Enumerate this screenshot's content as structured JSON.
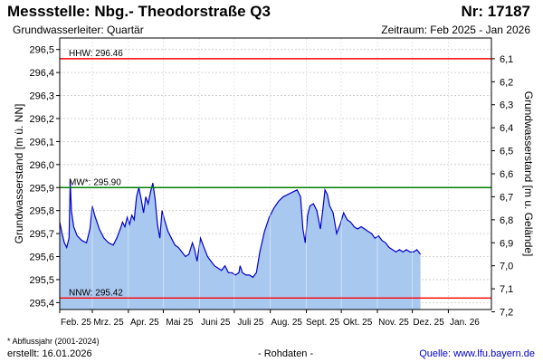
{
  "header": {
    "title": "Messstelle: Nbg.- Theodorstraße Q3",
    "number": "Nr: 17187",
    "aquifer": "Grundwasserleiter: Quartär",
    "period": "Zeitraum: Feb 2025 - Jan 2026"
  },
  "footer": {
    "footnote": "* Abflussjahr (2001-2024)",
    "created": "erstellt:  16.01.2026",
    "raw_data": "- Rohdaten -",
    "source": "Quelle:  www.lfu.bayern.de"
  },
  "chart_data": {
    "type": "area",
    "ylabel": "Grundwasserstand [m ü. NN]",
    "ylabel_right": "Grundwasserstand [m u. Gelände]",
    "ylim": [
      295.37,
      296.55
    ],
    "yticks": [
      {
        "value": 295.4,
        "label": "295,4"
      },
      {
        "value": 295.5,
        "label": "295,5"
      },
      {
        "value": 295.6,
        "label": "295,6"
      },
      {
        "value": 295.7,
        "label": "295,7"
      },
      {
        "value": 295.8,
        "label": "295,8"
      },
      {
        "value": 295.9,
        "label": "295,9"
      },
      {
        "value": 296.0,
        "label": "296,0"
      },
      {
        "value": 296.1,
        "label": "296,1"
      },
      {
        "value": 296.2,
        "label": "296,2"
      },
      {
        "value": 296.3,
        "label": "296,3"
      },
      {
        "value": 296.4,
        "label": "296,4"
      },
      {
        "value": 296.5,
        "label": "296,5"
      }
    ],
    "yticks_right": [
      {
        "value": 296.46,
        "label": "6,1"
      },
      {
        "value": 296.36,
        "label": "6,2"
      },
      {
        "value": 296.26,
        "label": "6,3"
      },
      {
        "value": 296.16,
        "label": "6,4"
      },
      {
        "value": 296.06,
        "label": "6,5"
      },
      {
        "value": 295.96,
        "label": "6,6"
      },
      {
        "value": 295.86,
        "label": "6,7"
      },
      {
        "value": 295.76,
        "label": "6,8"
      },
      {
        "value": 295.66,
        "label": "6,9"
      },
      {
        "value": 295.56,
        "label": "7,0"
      },
      {
        "value": 295.46,
        "label": "7,1"
      },
      {
        "value": 295.36,
        "label": "7,2"
      }
    ],
    "xlim": [
      "2025-02-01",
      "2026-02-07"
    ],
    "xticks": [
      {
        "value": "2025-02-15",
        "label": "Feb. 25"
      },
      {
        "value": "2025-03-15",
        "label": "Mrz. 25"
      },
      {
        "value": "2025-04-15",
        "label": "Apr. 25"
      },
      {
        "value": "2025-05-15",
        "label": "Mai 25"
      },
      {
        "value": "2025-06-15",
        "label": "Juni 25"
      },
      {
        "value": "2025-07-15",
        "label": "Juli 25"
      },
      {
        "value": "2025-08-15",
        "label": "Aug. 25"
      },
      {
        "value": "2025-09-15",
        "label": "Sept. 25"
      },
      {
        "value": "2025-10-15",
        "label": "Okt. 25"
      },
      {
        "value": "2025-11-15",
        "label": "Nov. 25"
      },
      {
        "value": "2025-12-15",
        "label": "Dez. 25"
      },
      {
        "value": "2026-01-15",
        "label": "Jan. 26"
      }
    ],
    "grid": true,
    "reference_lines": [
      {
        "label": "HHW: 296.46",
        "value": 296.46,
        "color": "#ff0000"
      },
      {
        "label": "MW*: 295.90",
        "value": 295.9,
        "color": "#008000"
      },
      {
        "label": "NNW: 295.42",
        "value": 295.42,
        "color": "#ff0000"
      }
    ],
    "series": [
      {
        "color": "#0000cc",
        "fill": "#a9c8ef",
        "points": [
          [
            "2025-02-01",
            295.75
          ],
          [
            "2025-02-03",
            295.7
          ],
          [
            "2025-02-05",
            295.66
          ],
          [
            "2025-02-07",
            295.64
          ],
          [
            "2025-02-09",
            295.68
          ],
          [
            "2025-02-10",
            295.93
          ],
          [
            "2025-02-11",
            295.8
          ],
          [
            "2025-02-13",
            295.73
          ],
          [
            "2025-02-16",
            295.69
          ],
          [
            "2025-02-20",
            295.67
          ],
          [
            "2025-02-24",
            295.66
          ],
          [
            "2025-02-27",
            295.72
          ],
          [
            "2025-03-01",
            295.82
          ],
          [
            "2025-03-03",
            295.78
          ],
          [
            "2025-03-07",
            295.72
          ],
          [
            "2025-03-11",
            295.68
          ],
          [
            "2025-03-15",
            295.66
          ],
          [
            "2025-03-19",
            295.65
          ],
          [
            "2025-03-22",
            295.68
          ],
          [
            "2025-03-25",
            295.72
          ],
          [
            "2025-03-27",
            295.75
          ],
          [
            "2025-03-29",
            295.73
          ],
          [
            "2025-03-31",
            295.77
          ],
          [
            "2025-04-02",
            295.74
          ],
          [
            "2025-04-04",
            295.78
          ],
          [
            "2025-04-06",
            295.76
          ],
          [
            "2025-04-08",
            295.86
          ],
          [
            "2025-04-10",
            295.9
          ],
          [
            "2025-04-12",
            295.85
          ],
          [
            "2025-04-14",
            295.79
          ],
          [
            "2025-04-16",
            295.86
          ],
          [
            "2025-04-18",
            295.83
          ],
          [
            "2025-04-20",
            295.88
          ],
          [
            "2025-04-22",
            295.92
          ],
          [
            "2025-04-24",
            295.85
          ],
          [
            "2025-04-26",
            295.74
          ],
          [
            "2025-04-28",
            295.68
          ],
          [
            "2025-04-30",
            295.8
          ],
          [
            "2025-05-02",
            295.76
          ],
          [
            "2025-05-05",
            295.71
          ],
          [
            "2025-05-08",
            295.68
          ],
          [
            "2025-05-11",
            295.65
          ],
          [
            "2025-05-14",
            295.64
          ],
          [
            "2025-05-17",
            295.62
          ],
          [
            "2025-05-20",
            295.6
          ],
          [
            "2025-05-23",
            295.61
          ],
          [
            "2025-05-26",
            295.66
          ],
          [
            "2025-05-28",
            295.63
          ],
          [
            "2025-05-30",
            295.58
          ],
          [
            "2025-06-02",
            295.68
          ],
          [
            "2025-06-05",
            295.64
          ],
          [
            "2025-06-08",
            295.6
          ],
          [
            "2025-06-11",
            295.58
          ],
          [
            "2025-06-14",
            295.56
          ],
          [
            "2025-06-17",
            295.55
          ],
          [
            "2025-06-20",
            295.54
          ],
          [
            "2025-06-23",
            295.56
          ],
          [
            "2025-06-26",
            295.53
          ],
          [
            "2025-06-29",
            295.53
          ],
          [
            "2025-07-02",
            295.52
          ],
          [
            "2025-07-05",
            295.53
          ],
          [
            "2025-07-06",
            295.56
          ],
          [
            "2025-07-08",
            295.53
          ],
          [
            "2025-07-11",
            295.52
          ],
          [
            "2025-07-14",
            295.52
          ],
          [
            "2025-07-17",
            295.51
          ],
          [
            "2025-07-20",
            295.53
          ],
          [
            "2025-07-23",
            295.62
          ],
          [
            "2025-07-27",
            295.71
          ],
          [
            "2025-07-31",
            295.77
          ],
          [
            "2025-08-04",
            295.81
          ],
          [
            "2025-08-08",
            295.84
          ],
          [
            "2025-08-12",
            295.86
          ],
          [
            "2025-08-16",
            295.87
          ],
          [
            "2025-08-20",
            295.88
          ],
          [
            "2025-08-24",
            295.89
          ],
          [
            "2025-08-27",
            295.86
          ],
          [
            "2025-08-29",
            295.72
          ],
          [
            "2025-08-31",
            295.66
          ],
          [
            "2025-09-02",
            295.78
          ],
          [
            "2025-09-04",
            295.82
          ],
          [
            "2025-09-07",
            295.83
          ],
          [
            "2025-09-10",
            295.8
          ],
          [
            "2025-09-13",
            295.72
          ],
          [
            "2025-09-15",
            295.8
          ],
          [
            "2025-09-17",
            295.89
          ],
          [
            "2025-09-19",
            295.87
          ],
          [
            "2025-09-21",
            295.82
          ],
          [
            "2025-09-24",
            295.79
          ],
          [
            "2025-09-27",
            295.7
          ],
          [
            "2025-09-30",
            295.74
          ],
          [
            "2025-10-03",
            295.79
          ],
          [
            "2025-10-06",
            295.76
          ],
          [
            "2025-10-09",
            295.75
          ],
          [
            "2025-10-12",
            295.73
          ],
          [
            "2025-10-15",
            295.72
          ],
          [
            "2025-10-18",
            295.73
          ],
          [
            "2025-10-21",
            295.72
          ],
          [
            "2025-10-24",
            295.71
          ],
          [
            "2025-10-27",
            295.7
          ],
          [
            "2025-10-30",
            295.68
          ],
          [
            "2025-11-02",
            295.69
          ],
          [
            "2025-11-05",
            295.67
          ],
          [
            "2025-11-08",
            295.66
          ],
          [
            "2025-11-11",
            295.64
          ],
          [
            "2025-11-14",
            295.63
          ],
          [
            "2025-11-17",
            295.62
          ],
          [
            "2025-11-20",
            295.63
          ],
          [
            "2025-11-23",
            295.62
          ],
          [
            "2025-11-26",
            295.63
          ],
          [
            "2025-11-29",
            295.62
          ],
          [
            "2025-12-02",
            295.62
          ],
          [
            "2025-12-05",
            295.63
          ],
          [
            "2025-12-08",
            295.61
          ]
        ]
      }
    ]
  }
}
